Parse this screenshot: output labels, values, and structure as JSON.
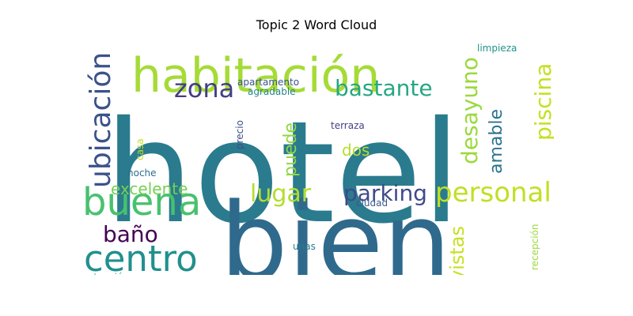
{
  "title": "Topic 2 Word Cloud",
  "chart_data": {
    "type": "wordcloud",
    "title": "Topic 2 Word Cloud",
    "words": [
      {
        "text": "hotel",
        "weight": 1.0,
        "color": "#2a7b8e"
      },
      {
        "text": "bien",
        "weight": 0.92,
        "color": "#2f6a8d"
      },
      {
        "text": "habitación",
        "weight": 0.5,
        "color": "#a5db36"
      },
      {
        "text": "buena",
        "weight": 0.4,
        "color": "#48c16e"
      },
      {
        "text": "centro",
        "weight": 0.38,
        "color": "#21908d"
      },
      {
        "text": "personal",
        "weight": 0.32,
        "color": "#c2df23"
      },
      {
        "text": "ubicación",
        "weight": 0.3,
        "color": "#3b528b"
      },
      {
        "text": "lugar",
        "weight": 0.28,
        "color": "#b2dd2d"
      },
      {
        "text": "zona",
        "weight": 0.3,
        "color": "#433e85"
      },
      {
        "text": "bastante",
        "weight": 0.27,
        "color": "#25a783"
      },
      {
        "text": "desayuno",
        "weight": 0.27,
        "color": "#9bd93c"
      },
      {
        "text": "parking",
        "weight": 0.26,
        "color": "#3e4a89"
      },
      {
        "text": "piscina",
        "weight": 0.25,
        "color": "#c5e021"
      },
      {
        "text": "baño",
        "weight": 0.23,
        "color": "#440154"
      },
      {
        "text": "vistas",
        "weight": 0.23,
        "color": "#c8e020"
      },
      {
        "text": "amable",
        "weight": 0.21,
        "color": "#2c728e"
      },
      {
        "text": "puede",
        "weight": 0.2,
        "color": "#8fd744"
      },
      {
        "text": "excelente",
        "weight": 0.18,
        "color": "#75d054"
      },
      {
        "text": "dos",
        "weight": 0.17,
        "color": "#b5de2b"
      },
      {
        "text": "apartamento",
        "weight": 0.1,
        "color": "#3a538b"
      },
      {
        "text": "agradable",
        "weight": 0.1,
        "color": "#25848e"
      },
      {
        "text": "limpieza",
        "weight": 0.1,
        "color": "#20938c"
      },
      {
        "text": "terraza",
        "weight": 0.1,
        "color": "#404387"
      },
      {
        "text": "ciudad",
        "weight": 0.09,
        "color": "#38598c"
      },
      {
        "text": "noche",
        "weight": 0.09,
        "color": "#2e6e8e"
      },
      {
        "text": "precio",
        "weight": 0.09,
        "color": "#3e4c8a"
      },
      {
        "text": "casa",
        "weight": 0.08,
        "color": "#c0df25"
      },
      {
        "text": "unas",
        "weight": 0.08,
        "color": "#297b8e"
      },
      {
        "text": "atención",
        "weight": 0.09,
        "color": "#2ab07f"
      },
      {
        "text": "recepción",
        "weight": 0.08,
        "color": "#9bd93c"
      }
    ]
  }
}
